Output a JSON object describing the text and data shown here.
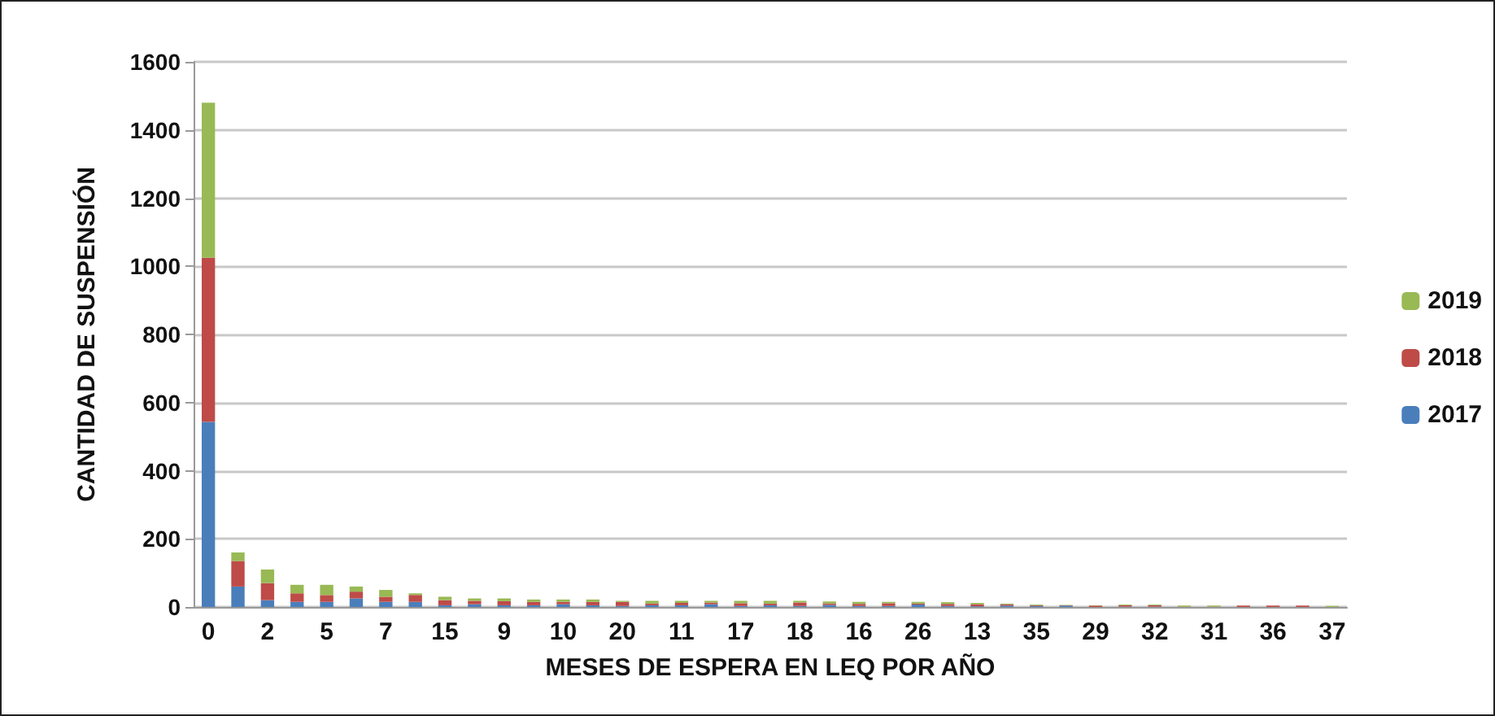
{
  "chart_data": {
    "type": "bar",
    "stacked": true,
    "xlabel": "MESES DE ESPERA EN LEQ POR AÑO",
    "ylabel": "CANTIDAD DE SUSPENSIÓN",
    "categories": [
      "0",
      null,
      "2",
      null,
      "5",
      null,
      "7",
      null,
      "15",
      null,
      "9",
      null,
      "10",
      null,
      "20",
      null,
      "11",
      null,
      "17",
      null,
      "18",
      null,
      "16",
      null,
      "26",
      null,
      "13",
      null,
      "35",
      null,
      "29",
      null,
      "32",
      null,
      "31",
      null,
      "36",
      null,
      "37"
    ],
    "series": [
      {
        "name": "2017",
        "color": "#4a7ebb",
        "values": [
          543,
          60,
          20,
          15,
          15,
          25,
          15,
          15,
          5,
          8,
          5,
          5,
          8,
          5,
          3,
          5,
          5,
          8,
          3,
          5,
          3,
          6,
          3,
          3,
          7,
          3,
          2,
          4,
          3,
          4,
          0,
          1,
          1,
          0,
          0,
          0,
          0,
          0,
          0
        ]
      },
      {
        "name": "2018",
        "color": "#be4b48",
        "values": [
          482,
          75,
          50,
          25,
          20,
          20,
          15,
          20,
          15,
          10,
          12,
          10,
          7,
          10,
          12,
          5,
          7,
          5,
          8,
          5,
          10,
          4,
          6,
          8,
          3,
          6,
          6,
          4,
          2,
          1,
          4,
          4,
          4,
          1,
          1,
          4,
          4,
          4,
          0
        ]
      },
      {
        "name": "2019",
        "color": "#98b954",
        "values": [
          455,
          25,
          40,
          25,
          30,
          15,
          20,
          5,
          10,
          7,
          8,
          7,
          7,
          7,
          3,
          8,
          6,
          5,
          7,
          8,
          5,
          6,
          6,
          4,
          5,
          5,
          4,
          2,
          2,
          1,
          1,
          2,
          2,
          3,
          3,
          0,
          0,
          0,
          3
        ]
      }
    ],
    "ylim": [
      0,
      1600
    ],
    "yticks": [
      0,
      200,
      400,
      600,
      800,
      1000,
      1200,
      1400,
      1600
    ],
    "grid": "y",
    "legend": "right"
  }
}
